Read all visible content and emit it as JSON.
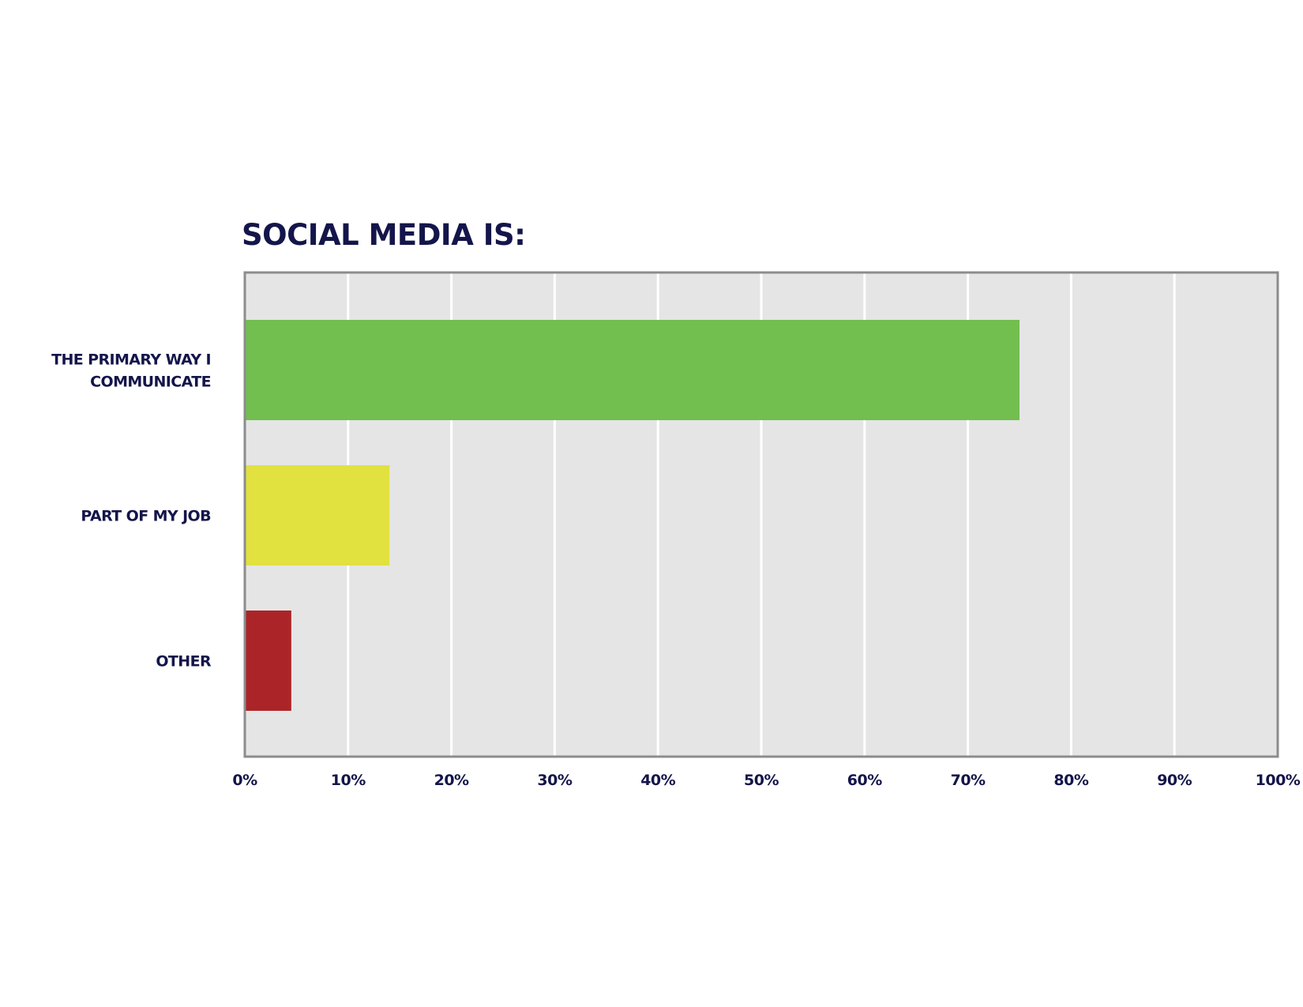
{
  "chart_data": {
    "type": "bar",
    "orientation": "horizontal",
    "title": "SOCIAL MEDIA IS:",
    "categories": [
      [
        "THE PRIMARY WAY I",
        "COMMUNICATE"
      ],
      [
        "PART OF MY JOB"
      ],
      [
        "OTHER"
      ]
    ],
    "values": [
      75,
      14,
      4.5
    ],
    "colors": [
      "#72be4f",
      "#e1e13f",
      "#ab2528"
    ],
    "xlim": [
      0,
      100
    ],
    "xticks": [
      "0%",
      "10%",
      "20%",
      "30%",
      "40%",
      "50%",
      "60%",
      "70%",
      "80%",
      "90%",
      "100%"
    ],
    "grid": true,
    "legend": "none",
    "plot_background": "#e5e5e5",
    "text_color": "#14154a"
  }
}
